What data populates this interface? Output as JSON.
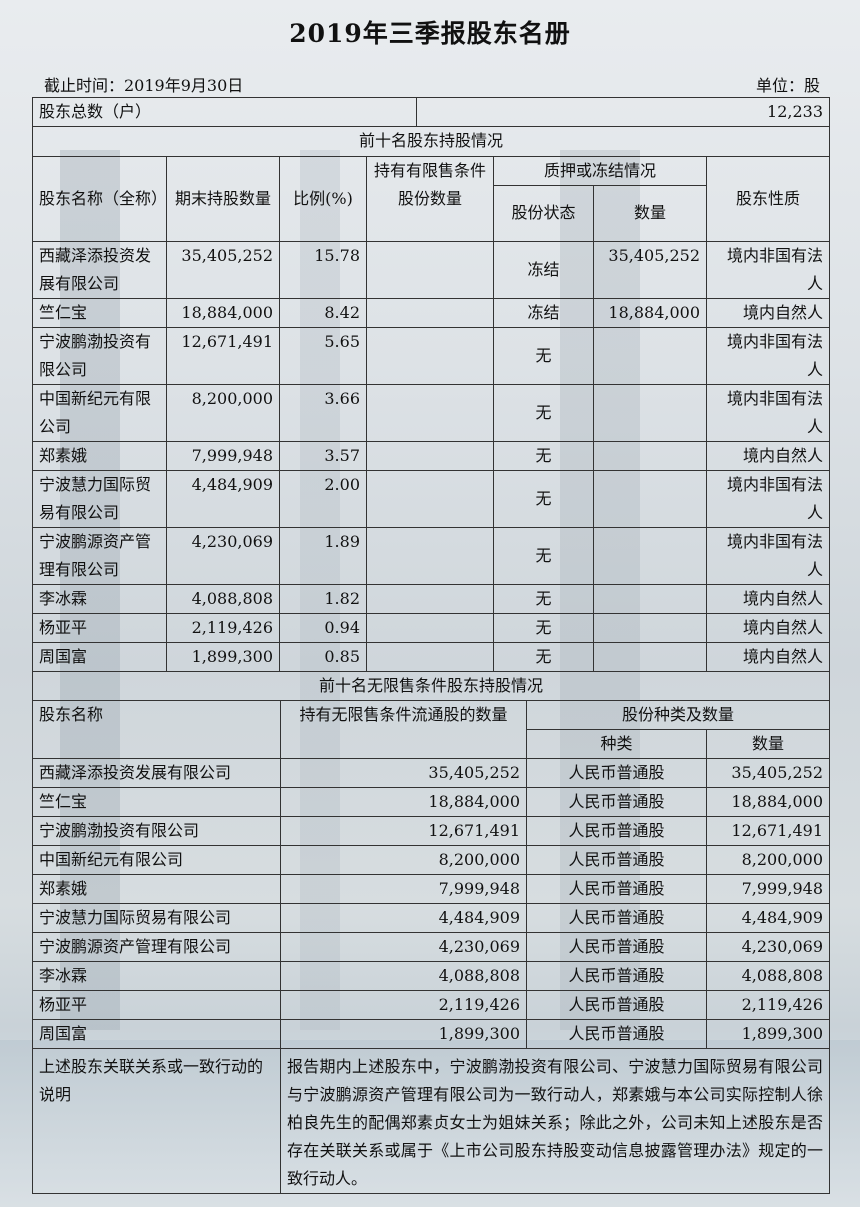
{
  "title": "2019年三季报股东名册",
  "as_of": "截止时间：2019年9月30日",
  "unit": "单位：股",
  "total_holders": {
    "label": "股东总数（户）",
    "value": "12,233"
  },
  "top10": {
    "section_title": "前十名股东持股情况",
    "headers": {
      "name": "股东名称（全称）",
      "shares": "期末持股数量",
      "ratio": "比例(%)",
      "restricted": "持有有限售条件股份数量",
      "pledge_group": "质押或冻结情况",
      "pledge_status": "股份状态",
      "pledge_amount": "数量",
      "nature": "股东性质"
    },
    "rows": [
      {
        "name": "西藏泽添投资发展有限公司",
        "shares": "35,405,252",
        "ratio": "15.78",
        "restricted": "",
        "status": "冻结",
        "amount": "35,405,252",
        "nature": "境内非国有法人"
      },
      {
        "name": "竺仁宝",
        "shares": "18,884,000",
        "ratio": "8.42",
        "restricted": "",
        "status": "冻结",
        "amount": "18,884,000",
        "nature": "境内自然人"
      },
      {
        "name": "宁波鹏渤投资有限公司",
        "shares": "12,671,491",
        "ratio": "5.65",
        "restricted": "",
        "status": "无",
        "amount": "",
        "nature": "境内非国有法人"
      },
      {
        "name": "中国新纪元有限公司",
        "shares": "8,200,000",
        "ratio": "3.66",
        "restricted": "",
        "status": "无",
        "amount": "",
        "nature": "境内非国有法人"
      },
      {
        "name": "郑素娥",
        "shares": "7,999,948",
        "ratio": "3.57",
        "restricted": "",
        "status": "无",
        "amount": "",
        "nature": "境内自然人"
      },
      {
        "name": "宁波慧力国际贸易有限公司",
        "shares": "4,484,909",
        "ratio": "2.00",
        "restricted": "",
        "status": "无",
        "amount": "",
        "nature": "境内非国有法人"
      },
      {
        "name": "宁波鹏源资产管理有限公司",
        "shares": "4,230,069",
        "ratio": "1.89",
        "restricted": "",
        "status": "无",
        "amount": "",
        "nature": "境内非国有法人"
      },
      {
        "name": "李冰霖",
        "shares": "4,088,808",
        "ratio": "1.82",
        "restricted": "",
        "status": "无",
        "amount": "",
        "nature": "境内自然人"
      },
      {
        "name": "杨亚平",
        "shares": "2,119,426",
        "ratio": "0.94",
        "restricted": "",
        "status": "无",
        "amount": "",
        "nature": "境内自然人"
      },
      {
        "name": "周国富",
        "shares": "1,899,300",
        "ratio": "0.85",
        "restricted": "",
        "status": "无",
        "amount": "",
        "nature": "境内自然人"
      }
    ]
  },
  "top10_unrestricted": {
    "section_title": "前十名无限售条件股东持股情况",
    "headers": {
      "name": "股东名称",
      "shares": "持有无限售条件流通股的数量",
      "type_group": "股份种类及数量",
      "type": "种类",
      "amount": "数量"
    },
    "rows": [
      {
        "name": "西藏泽添投资发展有限公司",
        "shares": "35,405,252",
        "type": "人民币普通股",
        "amount": "35,405,252"
      },
      {
        "name": "竺仁宝",
        "shares": "18,884,000",
        "type": "人民币普通股",
        "amount": "18,884,000"
      },
      {
        "name": "宁波鹏渤投资有限公司",
        "shares": "12,671,491",
        "type": "人民币普通股",
        "amount": "12,671,491"
      },
      {
        "name": "中国新纪元有限公司",
        "shares": "8,200,000",
        "type": "人民币普通股",
        "amount": "8,200,000"
      },
      {
        "name": "郑素娥",
        "shares": "7,999,948",
        "type": "人民币普通股",
        "amount": "7,999,948"
      },
      {
        "name": "宁波慧力国际贸易有限公司",
        "shares": "4,484,909",
        "type": "人民币普通股",
        "amount": "4,484,909"
      },
      {
        "name": "宁波鹏源资产管理有限公司",
        "shares": "4,230,069",
        "type": "人民币普通股",
        "amount": "4,230,069"
      },
      {
        "name": "李冰霖",
        "shares": "4,088,808",
        "type": "人民币普通股",
        "amount": "4,088,808"
      },
      {
        "name": "杨亚平",
        "shares": "2,119,426",
        "type": "人民币普通股",
        "amount": "2,119,426"
      },
      {
        "name": "周国富",
        "shares": "1,899,300",
        "type": "人民币普通股",
        "amount": "1,899,300"
      }
    ]
  },
  "relation_note": {
    "label": "上述股东关联关系或一致行动的说明",
    "text": "报告期内上述股东中，宁波鹏渤投资有限公司、宁波慧力国际贸易有限公司与宁波鹏源资产管理有限公司为一致行动人，郑素娥与本公司实际控制人徐柏良先生的配偶郑素贞女士为姐妹关系；除此之外，公司未知上述股东是否存在关联关系或属于《上市公司股东持股变动信息披露管理办法》规定的一致行动人。"
  }
}
